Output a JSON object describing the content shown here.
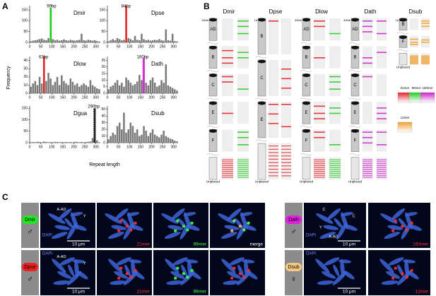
{
  "panel_labels": [
    "A",
    "B",
    "C"
  ],
  "axis_labels": {
    "y": "Frequency",
    "x": "Repeat length"
  },
  "chart_data": [
    {
      "type": "histogram",
      "title": "Dmir",
      "color": "#7a7a7a",
      "bins": [
        0,
        10,
        20,
        30,
        40,
        50,
        60,
        70,
        80,
        90,
        100,
        110,
        120,
        130,
        140,
        150,
        160,
        170,
        180,
        190,
        200,
        210,
        220,
        230,
        240,
        250,
        260,
        270,
        280,
        290,
        300,
        310,
        320
      ],
      "values": [
        5,
        8,
        10,
        12,
        15,
        18,
        12,
        10,
        20,
        160,
        15,
        10,
        12,
        8,
        10,
        14,
        10,
        8,
        12,
        10,
        8,
        10,
        12,
        40,
        10,
        8,
        12,
        10,
        8,
        10,
        6,
        4
      ],
      "xlim": [
        0,
        320
      ],
      "xticks": [
        0,
        50,
        100,
        150,
        200,
        250,
        300
      ],
      "ylim": [
        0,
        170
      ],
      "yticks": [
        0,
        50,
        100,
        150
      ],
      "highlight": {
        "value": 99,
        "label": "99bp",
        "color": "#22cc22"
      }
    },
    {
      "type": "histogram",
      "title": "Dpse",
      "color": "#7a7a7a",
      "bins": [
        0,
        10,
        20,
        30,
        40,
        50,
        60,
        70,
        80,
        90,
        100,
        110,
        120,
        130,
        140,
        150,
        160,
        170,
        180,
        190,
        200,
        210,
        220,
        230,
        240,
        250,
        260,
        270,
        280,
        290,
        300,
        310,
        320
      ],
      "values": [
        5,
        10,
        15,
        10,
        20,
        15,
        10,
        12,
        170,
        20,
        15,
        10,
        30,
        12,
        10,
        40,
        15,
        10,
        12,
        8,
        10,
        12,
        10,
        15,
        10,
        8,
        60,
        10,
        8,
        40,
        6,
        4
      ],
      "xlim": [
        0,
        320
      ],
      "xticks": [
        0,
        50,
        100,
        150,
        200,
        250,
        300
      ],
      "ylim": [
        0,
        170
      ],
      "yticks": [
        0,
        50,
        100,
        150
      ],
      "highlight": {
        "value": 84,
        "label": "84bp",
        "color": "#e02020"
      }
    },
    {
      "type": "histogram",
      "title": "Dlow",
      "color": "#7a7a7a",
      "bins": [
        0,
        10,
        20,
        30,
        40,
        50,
        60,
        70,
        80,
        90,
        100,
        110,
        120,
        130,
        140,
        150,
        160,
        170,
        180,
        190,
        200,
        210,
        220,
        230,
        240,
        250,
        260,
        270,
        280,
        290,
        300,
        310,
        320
      ],
      "values": [
        8,
        12,
        15,
        10,
        20,
        12,
        45,
        15,
        25,
        18,
        10,
        14,
        20,
        10,
        22,
        15,
        12,
        10,
        18,
        14,
        10,
        12,
        8,
        10,
        12,
        10,
        8,
        16,
        10,
        8,
        6,
        5
      ],
      "xlim": [
        0,
        320
      ],
      "xticks": [
        0,
        50,
        100,
        150,
        200,
        250,
        300
      ],
      "ylim": [
        0,
        45
      ],
      "yticks": [
        0,
        10,
        20,
        30,
        40
      ],
      "highlight": {
        "value": 63,
        "label": "63bp",
        "color": "#e02020"
      }
    },
    {
      "type": "histogram",
      "title": "Dath",
      "color": "#7a7a7a",
      "bins": [
        0,
        10,
        20,
        30,
        40,
        50,
        60,
        70,
        80,
        90,
        100,
        110,
        120,
        130,
        140,
        150,
        160,
        170,
        180,
        190,
        200,
        210,
        220,
        230,
        240,
        250,
        260,
        270,
        280,
        290,
        300,
        310,
        320
      ],
      "values": [
        3,
        5,
        6,
        8,
        10,
        6,
        8,
        5,
        12,
        10,
        8,
        6,
        7,
        9,
        14,
        10,
        27,
        8,
        6,
        10,
        12,
        8,
        5,
        6,
        10,
        8,
        22,
        6,
        5,
        4,
        3,
        2
      ],
      "xlim": [
        0,
        320
      ],
      "xticks": [
        0,
        50,
        100,
        150,
        200,
        250,
        300
      ],
      "ylim": [
        0,
        28
      ],
      "yticks": [
        0,
        5,
        10,
        15,
        20,
        25
      ],
      "highlight": {
        "value": 160,
        "label": "160bp",
        "color": "#cc22cc"
      }
    },
    {
      "type": "histogram",
      "title": "Dgua",
      "color": "#7a7a7a",
      "bins": [
        0,
        10,
        20,
        30,
        40,
        50,
        60,
        70,
        80,
        90,
        100,
        110,
        120,
        130,
        140,
        150,
        160,
        170,
        180,
        190,
        200,
        210,
        220,
        230,
        240,
        250,
        260,
        270,
        280,
        290,
        300,
        310,
        320
      ],
      "values": [
        2,
        3,
        2,
        4,
        3,
        2,
        5,
        3,
        2,
        3,
        2,
        4,
        3,
        2,
        3,
        2,
        3,
        2,
        3,
        2,
        4,
        3,
        2,
        3,
        2,
        3,
        4,
        5,
        20,
        150,
        10,
        2
      ],
      "xlim": [
        0,
        320
      ],
      "xticks": [
        0,
        50,
        100,
        150,
        200,
        250,
        300
      ],
      "ylim": [
        0,
        160
      ],
      "yticks": [
        0,
        50,
        100,
        150
      ],
      "highlight": {
        "value": 290,
        "label": "290bp",
        "color": "#222222"
      }
    },
    {
      "type": "histogram",
      "title": "Dsub",
      "color": "#7a7a7a",
      "bins": [
        0,
        10,
        20,
        30,
        40,
        50,
        60,
        70,
        80,
        90,
        100,
        110,
        120,
        130,
        140,
        150,
        160,
        170,
        180,
        190,
        200,
        210,
        220,
        230,
        240,
        250,
        260,
        270,
        280,
        290,
        300,
        310,
        320
      ],
      "values": [
        5,
        10,
        15,
        12,
        25,
        30,
        20,
        45,
        15,
        20,
        30,
        25,
        15,
        20,
        10,
        12,
        25,
        18,
        10,
        15,
        20,
        12,
        10,
        8,
        12,
        18,
        10,
        8,
        6,
        5,
        3,
        2
      ],
      "xlim": [
        0,
        320
      ],
      "xticks": [
        0,
        50,
        100,
        150,
        200,
        250,
        300
      ],
      "ylim": [
        0,
        55
      ],
      "yticks": [
        0,
        10,
        20,
        30,
        40,
        50
      ]
    }
  ],
  "panel_b": {
    "species": [
      {
        "name": "Dmir",
        "top_scale": "10Mb",
        "chromosomes": [
          "AD",
          "B",
          "C",
          "E",
          "F",
          "Unplaced"
        ],
        "track_colors": [
          "#e8202a",
          "#22cc22"
        ]
      },
      {
        "name": "Dpse",
        "top_scale": "1b",
        "chromosomes": [
          "B",
          "C",
          "E",
          "Unplaced"
        ],
        "track_colors": [
          "#e8202a",
          "#e8202a"
        ]
      },
      {
        "name": "Dlow",
        "top_scale": "40Mb",
        "chromosomes": [
          "AD",
          "B",
          "C",
          "E",
          "F",
          "Unplaced"
        ],
        "track_colors": [
          "#e8202a",
          "#22cc22"
        ]
      },
      {
        "name": "Dath",
        "top_scale": "30Mb",
        "chromosomes": [
          "AD",
          "B",
          "C",
          "E",
          "F",
          "Unplaced"
        ],
        "track_colors": [
          "#cc22cc",
          "#cc22cc"
        ]
      },
      {
        "name": "Dsub",
        "top_scale": "1b",
        "chromosomes": [
          "B",
          "F",
          "Unplaced"
        ],
        "track_colors": [
          "#f0a030",
          "#f0a030"
        ]
      }
    ],
    "legend": [
      {
        "name": "21mer",
        "color": "#e8202a"
      },
      {
        "name": "99mer",
        "color": "#22cc22"
      },
      {
        "name": "160mer",
        "color": "#cc22cc"
      },
      {
        "name": "12mer",
        "color": "#f0a030"
      }
    ]
  },
  "panel_c": {
    "groups": [
      {
        "rows": [
          {
            "species": "Dmir",
            "sex": "♂",
            "badge_color": "#22e622",
            "images": [
              {
                "stain": "DAPI",
                "marks": [
                  "A-AD",
                  "Y"
                ],
                "scale": "10 μm"
              },
              {
                "caption": "21mer",
                "caption_color": "#ff3030"
              },
              {
                "caption": "99mer",
                "caption_color": "#40ff40"
              },
              {
                "caption": "merge",
                "caption_color": "#ffffff"
              }
            ]
          },
          {
            "species": "Dpse",
            "sex": "♂",
            "badge_color": "#ee2020",
            "images": [
              {
                "stain": "DAPI",
                "marks": [
                  "A-AD",
                  "Y"
                ],
                "scale": "10 μm"
              },
              {
                "caption": "21mer",
                "caption_color": "#ff3030"
              },
              {
                "caption": "99mer",
                "caption_color": "#40ff40"
              },
              {
                "caption_color": "#ff3030"
              }
            ]
          }
        ]
      },
      {
        "rows": [
          {
            "species": "Dath",
            "sex": "♂",
            "badge_color": "#e020e0",
            "images": [
              {
                "stain": "DAPI",
                "marks": [
                  "C",
                  "C",
                  "Y",
                  "A-AD"
                ],
                "scale": "10 μm"
              },
              {
                "caption": "160mer",
                "caption_color": "#ff3030"
              }
            ]
          },
          {
            "species": "Dsub",
            "sex": "♀",
            "badge_color": "#f5c983",
            "images": [
              {
                "stain": "DAPI",
                "scale": "10 μm"
              },
              {
                "caption": "12mer",
                "caption_color": "#ff3030"
              }
            ]
          }
        ]
      }
    ]
  }
}
